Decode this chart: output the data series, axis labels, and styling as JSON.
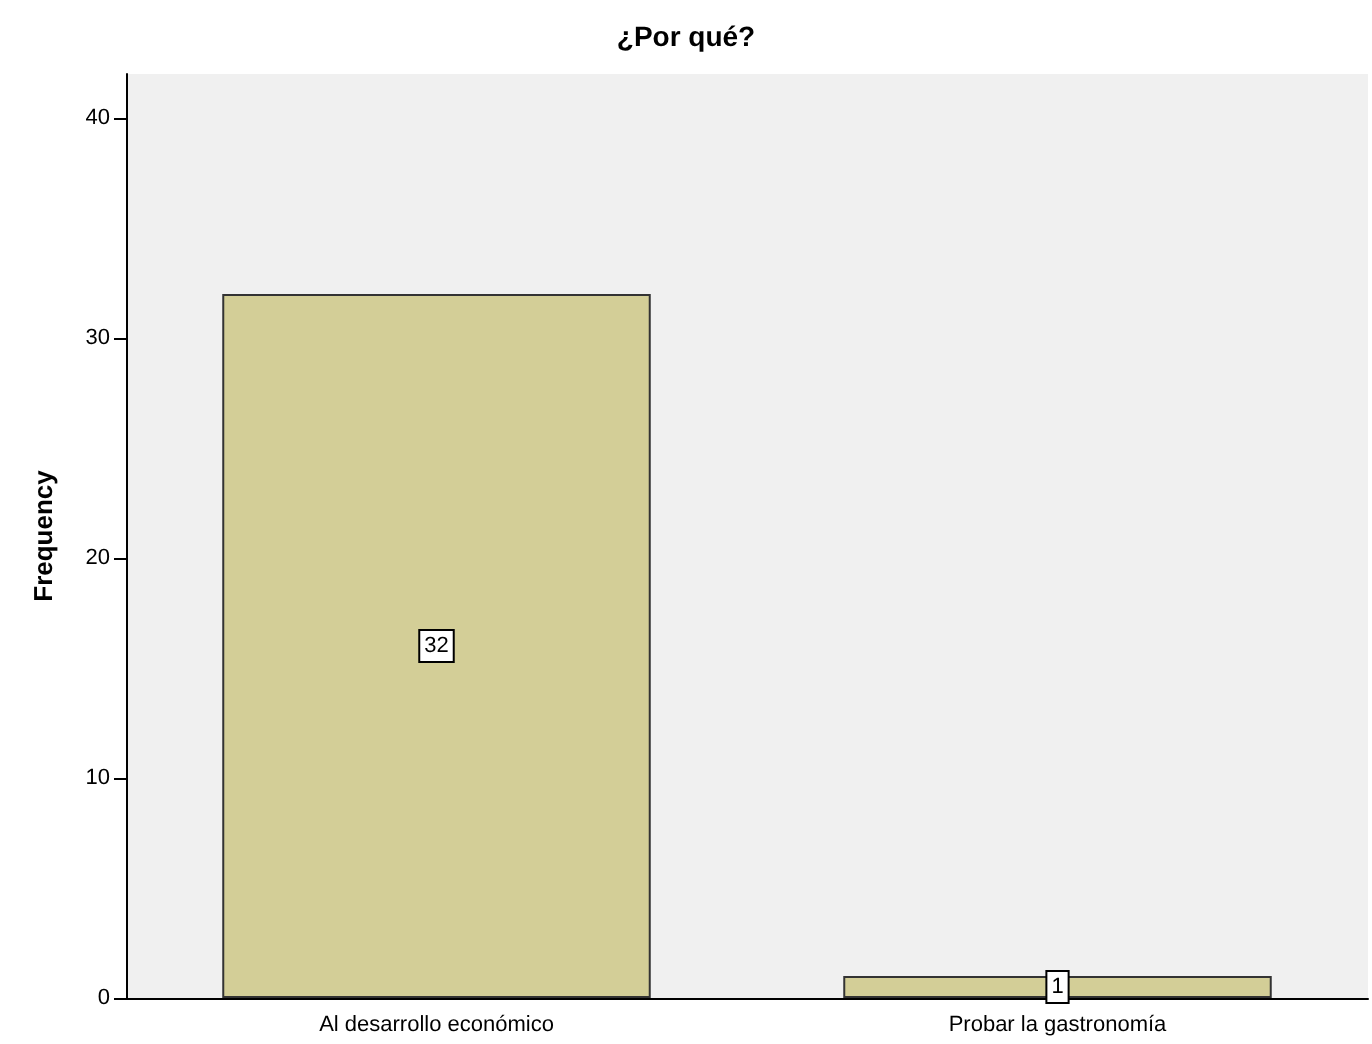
{
  "chart_data": {
    "type": "bar",
    "title": "¿Por qué?",
    "ylabel": "Frequency",
    "categories": [
      "Al desarrollo económico",
      "Probar la gastronomía"
    ],
    "values": [
      32,
      1
    ],
    "color": "#d3ce97",
    "ylim": [
      0,
      42
    ],
    "yticks": [
      0,
      10,
      20,
      30,
      40
    ],
    "grid": false,
    "data_labels": true
  }
}
